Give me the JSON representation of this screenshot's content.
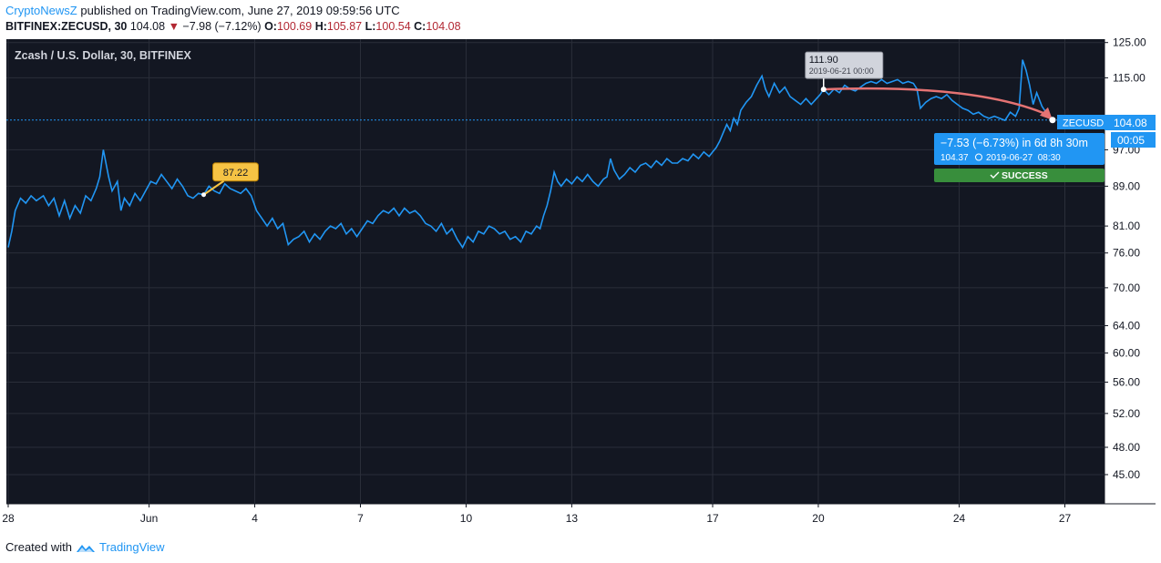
{
  "header": {
    "brand": "CryptoNewsZ",
    "published": "published on TradingView.com, June 27, 2019 09:59:56 UTC",
    "symbol_line": "BITFINEX:ZECUSD, 30",
    "last": "104.08",
    "change_arrow": "▼",
    "change": "−7.98 (−7.12%)",
    "o_label": "O:",
    "o_value": "100.69",
    "h_label": "H:",
    "h_value": "105.87",
    "l_label": "L:",
    "l_value": "100.54",
    "c_label": "C:",
    "c_value": "104.08"
  },
  "colors": {
    "background": "#131722",
    "grid": "#2a2e39",
    "price_line": "#2196f3",
    "price_label_bg": "#2196f3",
    "callout_yellow": "#f6c344",
    "callout_grey": "#d1d4dc",
    "arrow": "#e57373",
    "success": "#388e3c",
    "negative": "#b22833"
  },
  "chart_data": {
    "type": "line",
    "title": "Zcash / U.S. Dollar, 30, BITFINEX",
    "y_scale": "log",
    "ylim": [
      42,
      126
    ],
    "y_ticks": [
      125.0,
      115.0,
      104.08,
      97.0,
      89.0,
      81.0,
      76.0,
      70.0,
      64.0,
      60.0,
      56.0,
      52.0,
      48.0,
      45.0
    ],
    "y_tick_labels": [
      "125.00",
      "115.00",
      "104.08",
      "97.00",
      "89.00",
      "81.00",
      "76.00",
      "70.00",
      "64.00",
      "60.00",
      "56.00",
      "52.00",
      "48.00",
      "45.00"
    ],
    "x_tick_labels": [
      "28",
      "Jun",
      "4",
      "7",
      "10",
      "13",
      "17",
      "20",
      "24",
      "27"
    ],
    "x_tick_days": [
      0,
      4,
      7,
      10,
      13,
      16,
      20,
      23,
      27,
      30
    ],
    "x_ticks_pos": [
      {
        "label": "28",
        "day": 0
      },
      {
        "label": "Jun",
        "day": 4
      },
      {
        "label": "4",
        "day": 7
      },
      {
        "label": "7",
        "day": 10
      },
      {
        "label": "10",
        "day": 13
      },
      {
        "label": "13",
        "day": 16
      },
      {
        "label": "17",
        "day": 20
      },
      {
        "label": "20",
        "day": 23
      },
      {
        "label": "24",
        "day": 27
      },
      {
        "label": "27",
        "day": 30
      }
    ],
    "xlim_days": [
      0,
      30.6
    ],
    "grid": true,
    "series": [
      {
        "points": [
          [
            0.0,
            77.0
          ],
          [
            0.1,
            80.0
          ],
          [
            0.2,
            84.0
          ],
          [
            0.35,
            86.5
          ],
          [
            0.5,
            85.5
          ],
          [
            0.65,
            87.0
          ],
          [
            0.8,
            86.0
          ],
          [
            1.0,
            87.0
          ],
          [
            1.15,
            85.0
          ],
          [
            1.3,
            86.5
          ],
          [
            1.45,
            83.0
          ],
          [
            1.6,
            86.0
          ],
          [
            1.75,
            82.5
          ],
          [
            1.9,
            85.0
          ],
          [
            2.05,
            83.5
          ],
          [
            2.2,
            87.0
          ],
          [
            2.35,
            86.0
          ],
          [
            2.5,
            88.5
          ],
          [
            2.6,
            91.0
          ],
          [
            2.7,
            97.0
          ],
          [
            2.75,
            95.0
          ],
          [
            2.85,
            91.0
          ],
          [
            2.95,
            88.0
          ],
          [
            3.1,
            90.0
          ],
          [
            3.2,
            84.0
          ],
          [
            3.3,
            86.5
          ],
          [
            3.45,
            85.0
          ],
          [
            3.6,
            87.5
          ],
          [
            3.75,
            86.0
          ],
          [
            3.9,
            88.0
          ],
          [
            4.05,
            90.0
          ],
          [
            4.2,
            89.5
          ],
          [
            4.35,
            91.5
          ],
          [
            4.5,
            90.0
          ],
          [
            4.65,
            88.5
          ],
          [
            4.8,
            90.5
          ],
          [
            4.95,
            89.0
          ],
          [
            5.1,
            87.0
          ],
          [
            5.25,
            86.5
          ],
          [
            5.4,
            87.5
          ],
          [
            5.55,
            87.22
          ],
          [
            5.7,
            89.0
          ],
          [
            5.85,
            88.0
          ],
          [
            6.0,
            87.5
          ],
          [
            6.15,
            89.5
          ],
          [
            6.3,
            88.5
          ],
          [
            6.45,
            88.0
          ],
          [
            6.6,
            87.5
          ],
          [
            6.75,
            88.5
          ],
          [
            6.9,
            87.0
          ],
          [
            7.05,
            84.0
          ],
          [
            7.2,
            82.5
          ],
          [
            7.35,
            81.0
          ],
          [
            7.5,
            82.5
          ],
          [
            7.65,
            80.5
          ],
          [
            7.8,
            81.5
          ],
          [
            7.95,
            77.5
          ],
          [
            8.1,
            78.5
          ],
          [
            8.25,
            79.0
          ],
          [
            8.4,
            80.0
          ],
          [
            8.55,
            78.0
          ],
          [
            8.7,
            79.5
          ],
          [
            8.85,
            78.5
          ],
          [
            9.0,
            80.0
          ],
          [
            9.15,
            81.0
          ],
          [
            9.3,
            80.5
          ],
          [
            9.45,
            81.5
          ],
          [
            9.6,
            79.5
          ],
          [
            9.75,
            80.5
          ],
          [
            9.9,
            79.0
          ],
          [
            10.05,
            80.5
          ],
          [
            10.2,
            82.0
          ],
          [
            10.35,
            81.5
          ],
          [
            10.5,
            83.0
          ],
          [
            10.65,
            84.0
          ],
          [
            10.8,
            83.5
          ],
          [
            10.95,
            84.5
          ],
          [
            11.1,
            83.0
          ],
          [
            11.25,
            84.5
          ],
          [
            11.4,
            83.5
          ],
          [
            11.55,
            84.0
          ],
          [
            11.7,
            83.0
          ],
          [
            11.85,
            81.5
          ],
          [
            12.0,
            81.0
          ],
          [
            12.15,
            80.0
          ],
          [
            12.3,
            81.5
          ],
          [
            12.45,
            79.5
          ],
          [
            12.6,
            80.5
          ],
          [
            12.75,
            78.5
          ],
          [
            12.9,
            77.0
          ],
          [
            13.05,
            79.0
          ],
          [
            13.2,
            78.0
          ],
          [
            13.35,
            80.0
          ],
          [
            13.5,
            79.5
          ],
          [
            13.65,
            81.0
          ],
          [
            13.8,
            80.5
          ],
          [
            13.95,
            79.5
          ],
          [
            14.1,
            80.0
          ],
          [
            14.25,
            78.5
          ],
          [
            14.4,
            79.0
          ],
          [
            14.55,
            78.0
          ],
          [
            14.7,
            80.0
          ],
          [
            14.85,
            79.5
          ],
          [
            15.0,
            81.0
          ],
          [
            15.1,
            80.5
          ],
          [
            15.2,
            83.0
          ],
          [
            15.3,
            85.0
          ],
          [
            15.4,
            88.0
          ],
          [
            15.5,
            92.0
          ],
          [
            15.6,
            90.0
          ],
          [
            15.7,
            89.0
          ],
          [
            15.85,
            90.5
          ],
          [
            16.0,
            89.5
          ],
          [
            16.15,
            91.0
          ],
          [
            16.3,
            90.0
          ],
          [
            16.45,
            91.5
          ],
          [
            16.6,
            90.0
          ],
          [
            16.75,
            89.0
          ],
          [
            16.9,
            90.5
          ],
          [
            17.0,
            91.0
          ],
          [
            17.1,
            95.0
          ],
          [
            17.2,
            92.5
          ],
          [
            17.35,
            90.5
          ],
          [
            17.5,
            91.5
          ],
          [
            17.65,
            93.0
          ],
          [
            17.8,
            92.0
          ],
          [
            17.95,
            93.5
          ],
          [
            18.1,
            94.0
          ],
          [
            18.25,
            93.0
          ],
          [
            18.4,
            94.5
          ],
          [
            18.55,
            93.5
          ],
          [
            18.7,
            95.0
          ],
          [
            18.85,
            94.0
          ],
          [
            19.0,
            94.0
          ],
          [
            19.15,
            95.0
          ],
          [
            19.3,
            94.5
          ],
          [
            19.45,
            96.0
          ],
          [
            19.6,
            95.0
          ],
          [
            19.75,
            96.5
          ],
          [
            19.9,
            95.5
          ],
          [
            20.0,
            96.5
          ],
          [
            20.1,
            97.5
          ],
          [
            20.2,
            99.0
          ],
          [
            20.3,
            101.0
          ],
          [
            20.4,
            103.0
          ],
          [
            20.5,
            101.5
          ],
          [
            20.6,
            104.5
          ],
          [
            20.7,
            103.0
          ],
          [
            20.8,
            106.5
          ],
          [
            20.95,
            108.5
          ],
          [
            21.1,
            110.0
          ],
          [
            21.25,
            113.0
          ],
          [
            21.4,
            115.5
          ],
          [
            21.5,
            112.0
          ],
          [
            21.6,
            110.0
          ],
          [
            21.75,
            113.5
          ],
          [
            21.9,
            111.0
          ],
          [
            22.05,
            112.5
          ],
          [
            22.2,
            110.0
          ],
          [
            22.35,
            109.0
          ],
          [
            22.5,
            108.0
          ],
          [
            22.65,
            109.5
          ],
          [
            22.8,
            108.0
          ],
          [
            22.95,
            109.5
          ],
          [
            23.05,
            110.5
          ],
          [
            23.15,
            111.9
          ],
          [
            23.3,
            110.5
          ],
          [
            23.45,
            112.0
          ],
          [
            23.6,
            111.0
          ],
          [
            23.75,
            113.0
          ],
          [
            23.9,
            112.0
          ],
          [
            24.05,
            111.5
          ],
          [
            24.2,
            112.5
          ],
          [
            24.35,
            113.5
          ],
          [
            24.5,
            114.0
          ],
          [
            24.65,
            113.5
          ],
          [
            24.8,
            114.5
          ],
          [
            24.95,
            113.5
          ],
          [
            25.1,
            114.0
          ],
          [
            25.25,
            114.5
          ],
          [
            25.4,
            113.5
          ],
          [
            25.55,
            114.0
          ],
          [
            25.7,
            113.5
          ],
          [
            25.8,
            112.0
          ],
          [
            25.9,
            107.0
          ],
          [
            26.05,
            108.5
          ],
          [
            26.2,
            109.5
          ],
          [
            26.35,
            110.0
          ],
          [
            26.5,
            109.5
          ],
          [
            26.65,
            110.5
          ],
          [
            26.8,
            109.0
          ],
          [
            26.95,
            108.0
          ],
          [
            27.1,
            107.0
          ],
          [
            27.25,
            106.5
          ],
          [
            27.4,
            105.5
          ],
          [
            27.55,
            106.0
          ],
          [
            27.7,
            105.0
          ],
          [
            27.85,
            104.5
          ],
          [
            28.0,
            105.0
          ],
          [
            28.15,
            104.5
          ],
          [
            28.3,
            104.0
          ],
          [
            28.45,
            106.0
          ],
          [
            28.6,
            105.0
          ],
          [
            28.7,
            107.0
          ],
          [
            28.8,
            120.0
          ],
          [
            28.9,
            117.0
          ],
          [
            29.0,
            113.0
          ],
          [
            29.1,
            108.0
          ],
          [
            29.2,
            111.0
          ],
          [
            29.35,
            107.5
          ],
          [
            29.5,
            105.5
          ],
          [
            29.65,
            104.08
          ]
        ]
      }
    ],
    "annotations": {
      "low_marker": {
        "label": "87.22",
        "day": 5.55,
        "value": 87.22
      },
      "high_marker": {
        "label": "111.90",
        "date": "2019-06-21 00:00",
        "day": 23.15,
        "value": 111.9
      },
      "arrow_end": {
        "day": 29.65,
        "value": 104.08
      },
      "price_tag_symbol": "ZECUSD",
      "price_tag_value": "104.08",
      "countdown": "00:05",
      "result_line1": "−7.53 (−6.73%) in 6d 8h 30m",
      "result_price": "104.37",
      "result_date": "2019-06-27  08:30",
      "success_label": "SUCCESS"
    }
  },
  "footer": {
    "created_with": "Created with",
    "tradingview": "TradingView"
  }
}
